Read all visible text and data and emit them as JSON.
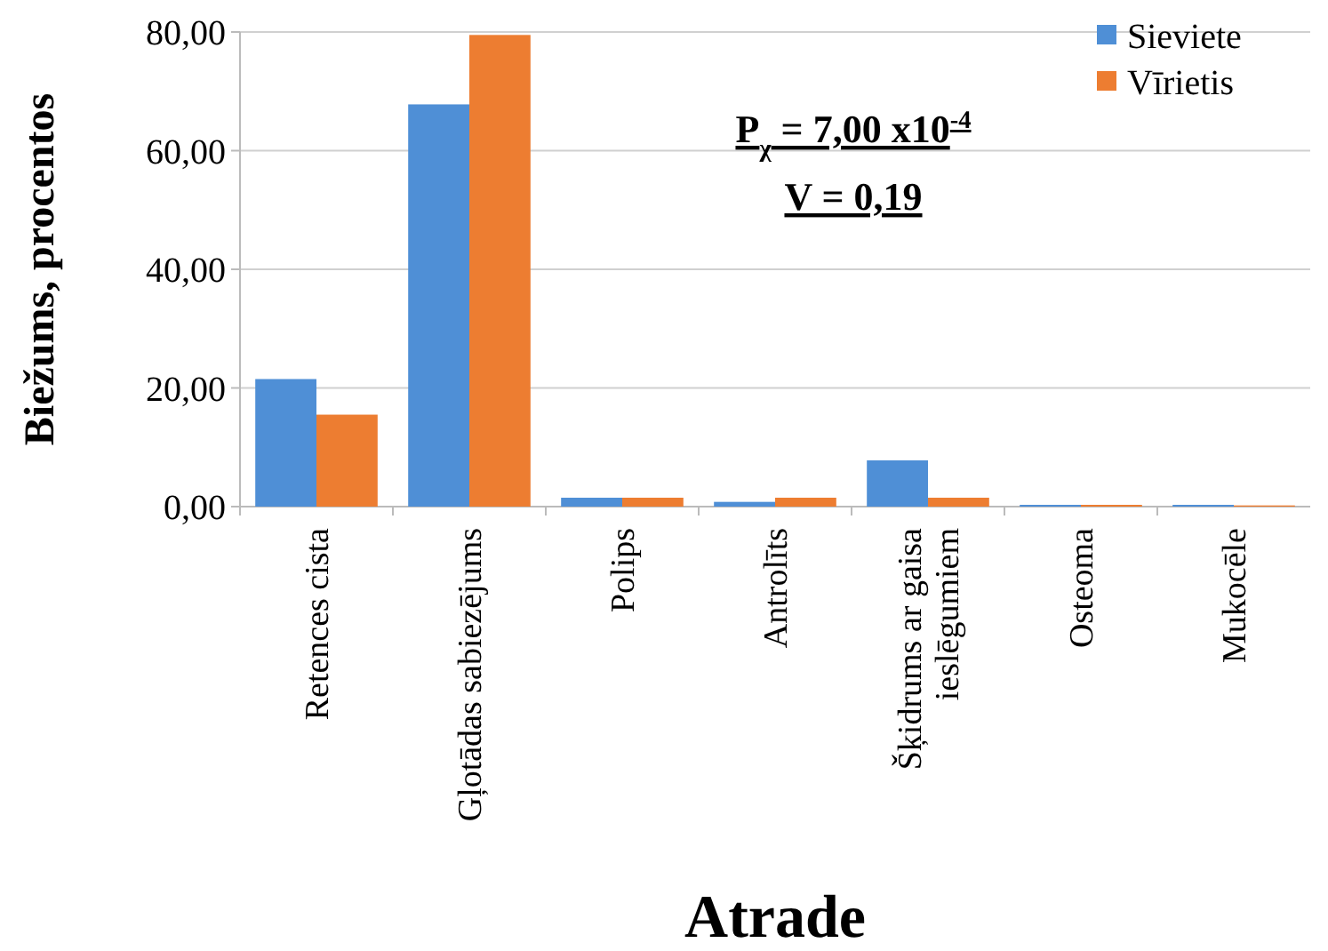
{
  "chart_data": {
    "type": "bar",
    "xlabel": "Atrade",
    "ylabel": "Biežums, procentos",
    "categories": [
      "Retences cista",
      "Gļotādas sabiezējums",
      "Polips",
      "Antrolīts",
      "Šķidrums ar gaisa ieslēgumiem",
      "Osteoma",
      "Mukocēle"
    ],
    "series": [
      {
        "name": "Sieviete",
        "color": "#4f8fd6",
        "values": [
          21.5,
          67.8,
          1.5,
          0.8,
          7.8,
          0.3,
          0.3
        ]
      },
      {
        "name": "Vīrietis",
        "color": "#ed7d31",
        "values": [
          15.5,
          79.5,
          1.5,
          1.5,
          1.5,
          0.3,
          0.2
        ]
      }
    ],
    "ylim": [
      0,
      80
    ],
    "yticks": [
      {
        "value": 0,
        "label": "0,00"
      },
      {
        "value": 20,
        "label": "20,00"
      },
      {
        "value": 40,
        "label": "40,00"
      },
      {
        "value": 60,
        "label": "60,00"
      },
      {
        "value": 80,
        "label": "80,00"
      }
    ],
    "grid": "y",
    "legend": "top right",
    "annotations": [
      "P$_{χ}$ = 7,00 x10$^{-4}$",
      "V = 0,19"
    ]
  }
}
